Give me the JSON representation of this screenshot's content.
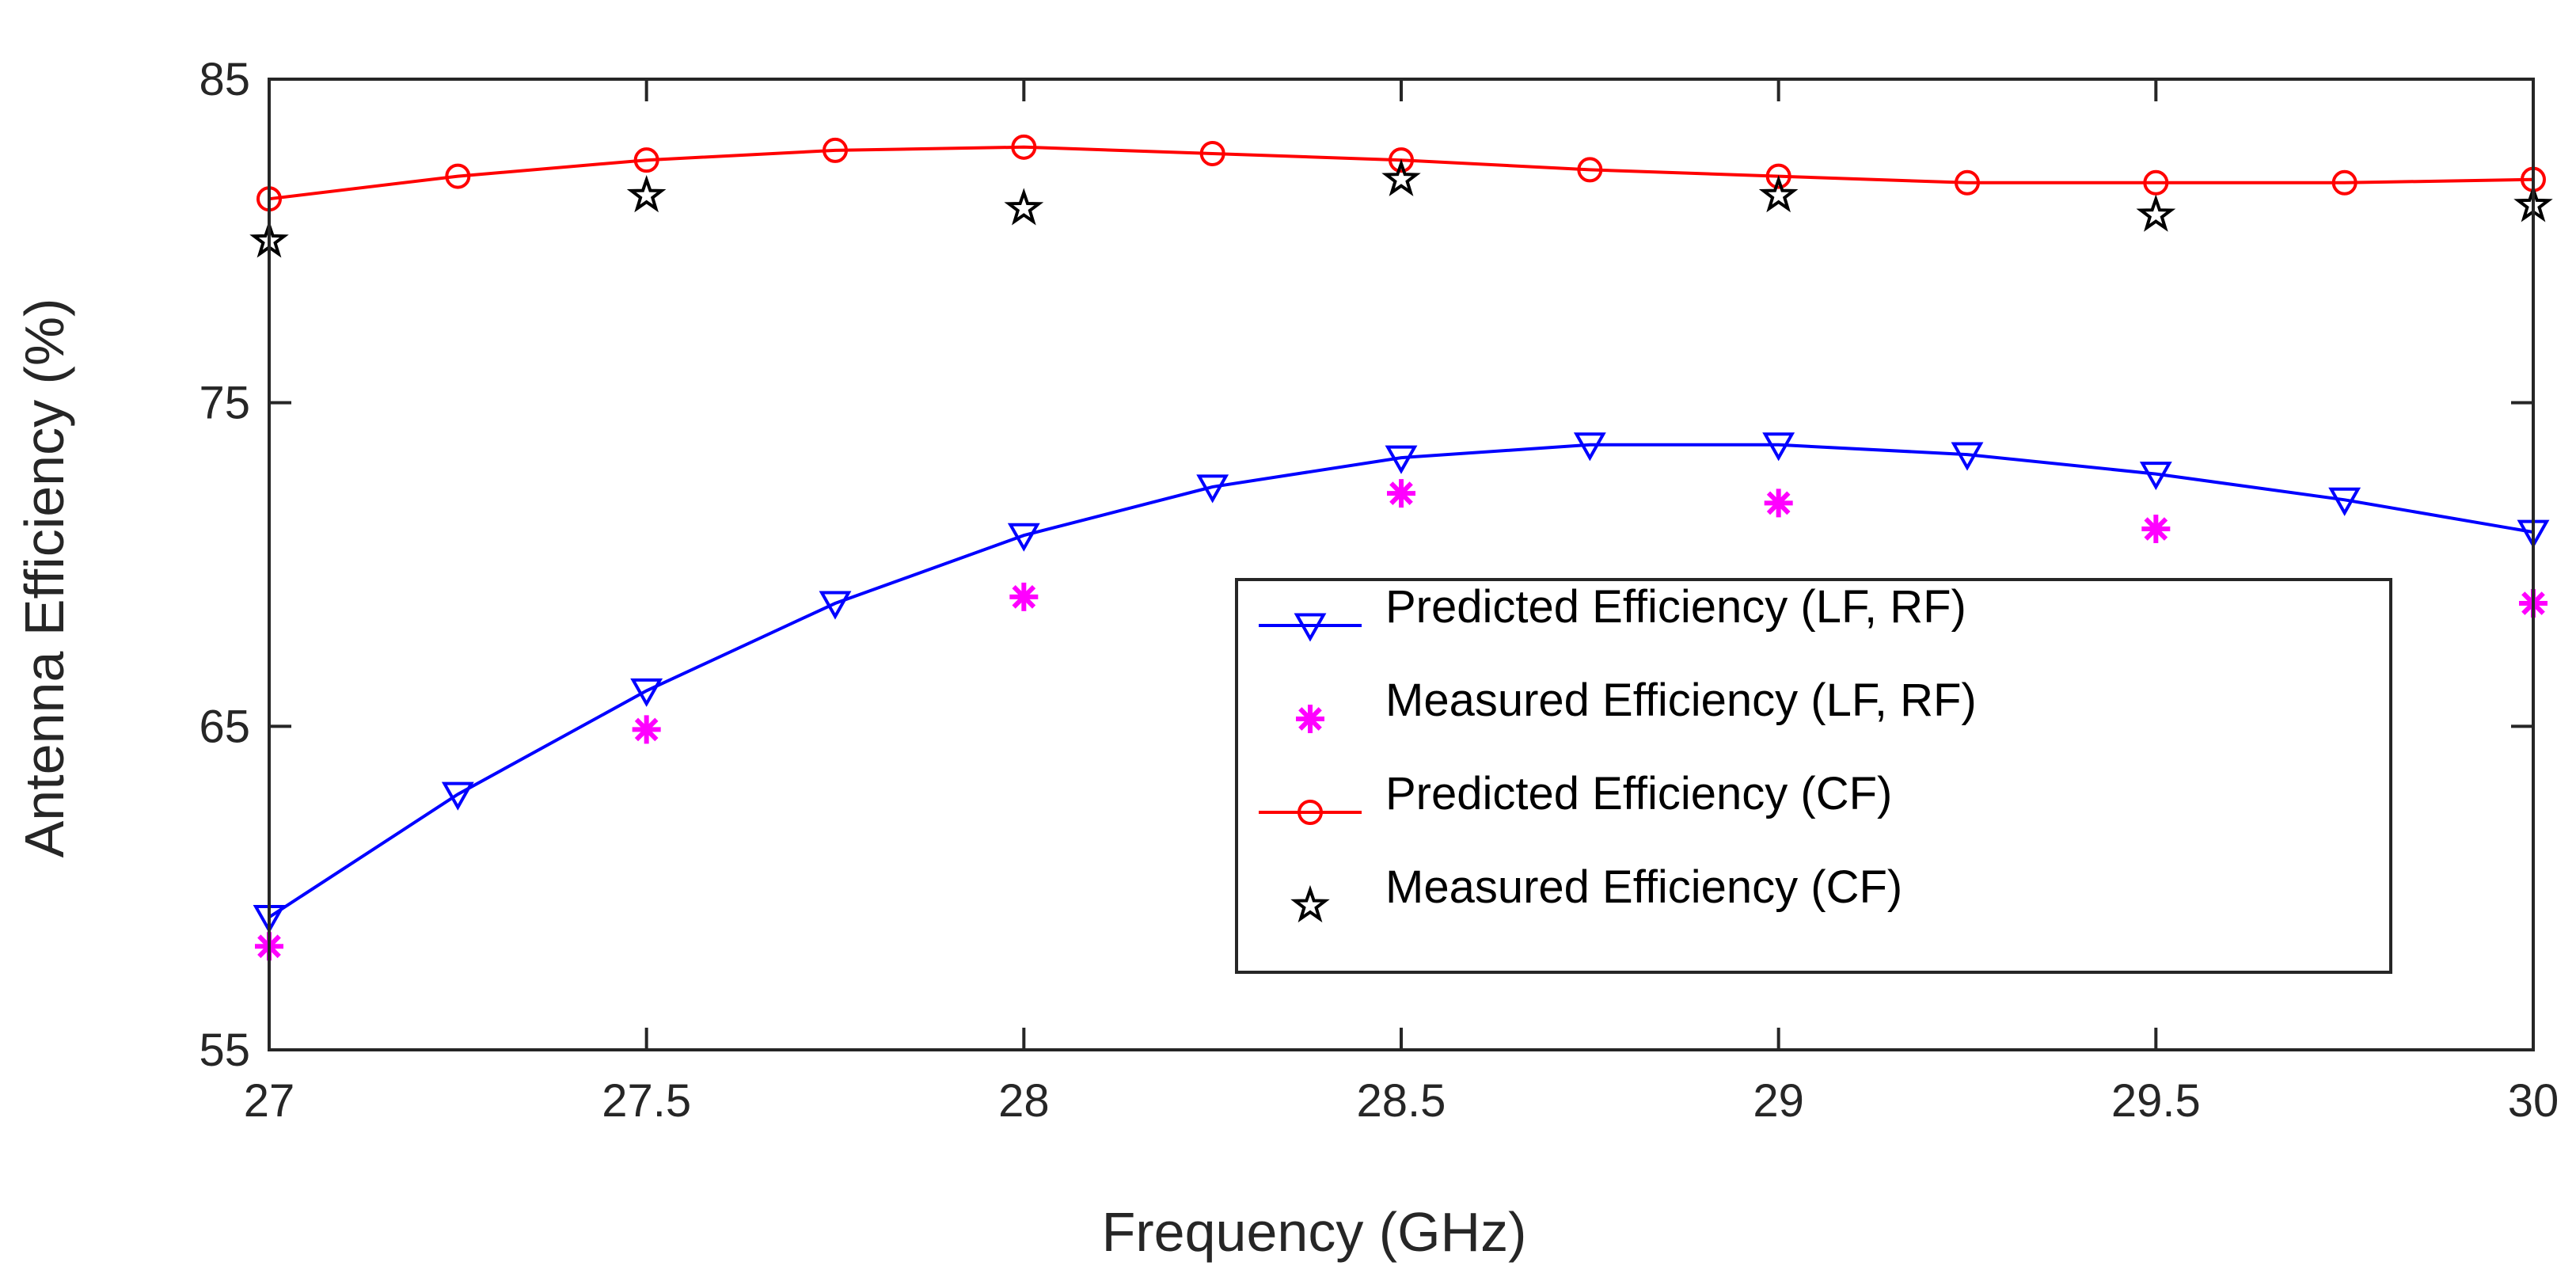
{
  "chart_data": {
    "type": "line",
    "title": "",
    "xlabel": "Frequency (GHz)",
    "ylabel": "Antenna Efficiency (%)",
    "xlim": [
      27,
      30
    ],
    "ylim": [
      55,
      85
    ],
    "xticks": [
      27,
      27.5,
      28,
      28.5,
      29,
      29.5,
      30
    ],
    "xtick_labels": [
      "27",
      "27.5",
      "28",
      "28.5",
      "29",
      "29.5",
      "30"
    ],
    "yticks": [
      55,
      65,
      75,
      85
    ],
    "ytick_labels": [
      "55",
      "65",
      "75",
      "85"
    ],
    "grid": false,
    "legend_position": "center-right",
    "series": [
      {
        "name": "Predicted Efficiency (LF, RF)",
        "style": "line-marker",
        "marker": "triangle-down",
        "color": "#0000ff",
        "x": [
          27,
          27.25,
          27.5,
          27.75,
          28,
          28.25,
          28.5,
          28.75,
          29,
          29.25,
          29.5,
          29.75,
          30
        ],
        "values": [
          59.1,
          62.9,
          66.1,
          68.8,
          70.9,
          72.4,
          73.3,
          73.7,
          73.7,
          73.4,
          72.8,
          72.0,
          71.0
        ]
      },
      {
        "name": "Measured Efficiency (LF, RF)",
        "style": "marker",
        "marker": "asterisk",
        "color": "#ff00ff",
        "x": [
          27,
          27.5,
          28,
          28.5,
          29,
          29.5,
          30
        ],
        "values": [
          58.2,
          64.9,
          69.0,
          72.2,
          71.9,
          71.1,
          68.8
        ]
      },
      {
        "name": "Predicted Efficiency (CF)",
        "style": "line-marker",
        "marker": "circle",
        "color": "#ff0000",
        "x": [
          27,
          27.25,
          27.5,
          27.75,
          28,
          28.25,
          28.5,
          28.75,
          29,
          29.25,
          29.5,
          29.75,
          30
        ],
        "values": [
          81.3,
          82.0,
          82.5,
          82.8,
          82.9,
          82.7,
          82.5,
          82.2,
          82.0,
          81.8,
          81.8,
          81.8,
          81.9
        ]
      },
      {
        "name": "Measured Efficiency (CF)",
        "style": "marker",
        "marker": "star",
        "color": "#000000",
        "x": [
          27,
          27.5,
          28,
          28.5,
          29,
          29.5,
          30
        ],
        "values": [
          80.0,
          81.4,
          81.0,
          81.9,
          81.4,
          80.8,
          81.1
        ]
      }
    ]
  }
}
